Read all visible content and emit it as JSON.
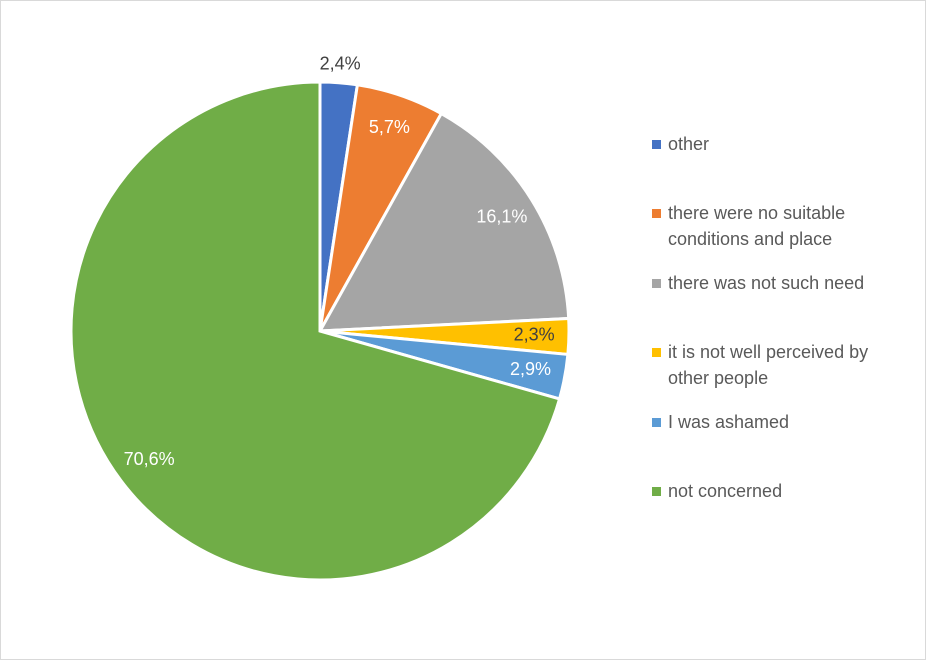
{
  "chart_data": {
    "type": "pie",
    "categories": [
      "other",
      "there were no suitable conditions and place",
      "there was not such need",
      "it is not well perceived by other people",
      "I was ashamed",
      "not concerned"
    ],
    "values": [
      2.4,
      5.7,
      16.1,
      2.3,
      2.9,
      70.6
    ],
    "value_labels": [
      "2,4%",
      "5,7%",
      "16,1%",
      "2,3%",
      "2,9%",
      "70,6%"
    ],
    "colors": [
      "#4472c4",
      "#ed7d31",
      "#a5a5a5",
      "#ffc000",
      "#5b9bd5",
      "#70ad47"
    ],
    "legend": "right"
  }
}
